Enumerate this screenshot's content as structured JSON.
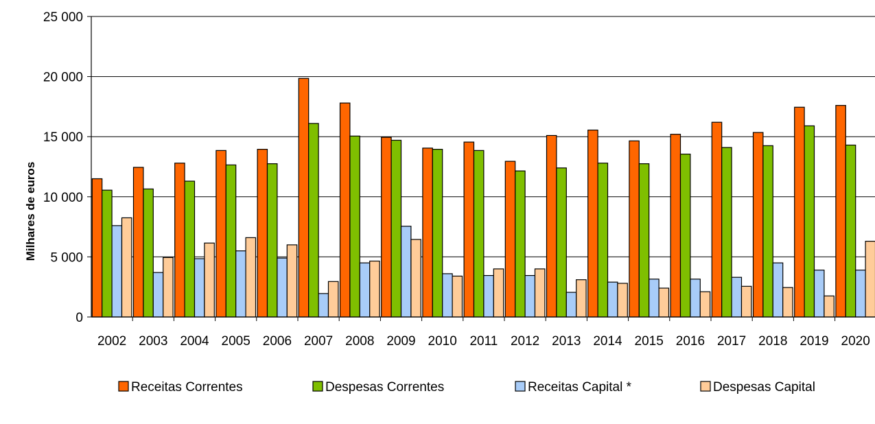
{
  "chart_data": {
    "type": "bar",
    "title": "",
    "xlabel": "",
    "ylabel": "Milhares de euros",
    "ylim": [
      0,
      25000
    ],
    "yticks": [
      0,
      5000,
      10000,
      15000,
      20000,
      25000
    ],
    "ytick_labels": [
      "0",
      "5 000",
      "10 000",
      "15 000",
      "20 000",
      "25 000"
    ],
    "grid": "horizontal",
    "legend_position": "bottom",
    "categories": [
      "2002",
      "2003",
      "2004",
      "2005",
      "2006",
      "2007",
      "2008",
      "2009",
      "2010",
      "2011",
      "2012",
      "2013",
      "2014",
      "2015",
      "2016",
      "2017",
      "2018",
      "2019",
      "2020"
    ],
    "series": [
      {
        "name": "Receitas Correntes",
        "color": "#FF6600",
        "values": [
          11500,
          12450,
          12800,
          13850,
          13950,
          19850,
          17800,
          14950,
          14050,
          14550,
          12950,
          15100,
          15550,
          14650,
          15200,
          16200,
          15350,
          17450,
          17600
        ]
      },
      {
        "name": "Despesas Correntes",
        "color": "#7FBF00",
        "values": [
          10550,
          10650,
          11300,
          12650,
          12750,
          16100,
          15050,
          14700,
          13950,
          13850,
          12150,
          12400,
          12800,
          12750,
          13550,
          14100,
          14250,
          15900,
          14300
        ]
      },
      {
        "name": "Receitas Capital *",
        "color": "#A8CCF8",
        "values": [
          7600,
          3700,
          4850,
          5500,
          4900,
          1950,
          4500,
          7550,
          3600,
          3450,
          3450,
          2050,
          2900,
          3150,
          3150,
          3300,
          4500,
          3900,
          3900
        ]
      },
      {
        "name": "Despesas Capital",
        "color": "#FFCC99",
        "values": [
          8250,
          4950,
          6150,
          6600,
          6000,
          2950,
          4650,
          6450,
          3400,
          4000,
          4000,
          3100,
          2800,
          2400,
          2100,
          2550,
          2450,
          1750,
          6300
        ]
      }
    ]
  }
}
